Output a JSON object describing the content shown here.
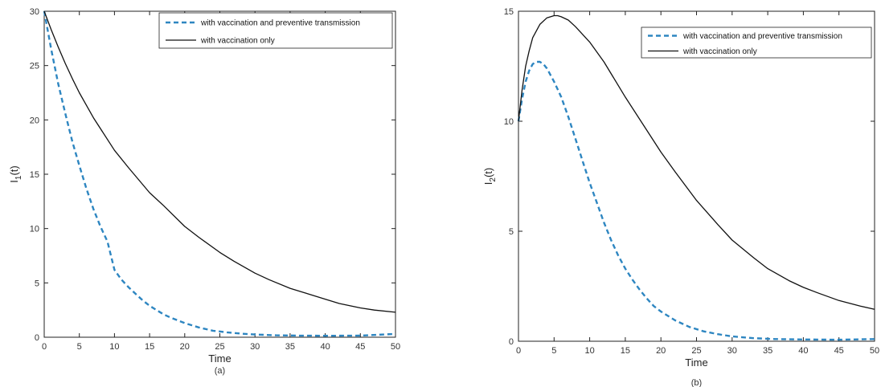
{
  "chart_data": [
    {
      "type": "line",
      "caption": "(a)",
      "xlabel": "Time",
      "ylabel_main": "I",
      "ylabel_sub": "1",
      "ylabel_tail": "(t)",
      "xlim": [
        0,
        50
      ],
      "ylim": [
        0,
        30
      ],
      "xticks": [
        0,
        5,
        10,
        15,
        20,
        25,
        30,
        35,
        40,
        45,
        50
      ],
      "yticks": [
        0,
        5,
        10,
        15,
        20,
        25,
        30
      ],
      "grid": false,
      "legend_position": "top-right",
      "series": [
        {
          "name": "with  vaccination and preventive transmission",
          "style": "dashed",
          "color": "#2e86c1",
          "x": [
            0,
            1,
            2,
            3,
            4,
            5,
            6,
            7,
            8,
            9,
            10,
            11,
            12,
            13,
            14,
            15,
            16,
            17,
            18,
            20,
            22,
            24,
            26,
            28,
            30,
            33,
            36,
            40,
            45,
            50
          ],
          "y": [
            30,
            26.5,
            23.3,
            20.6,
            18.0,
            15.8,
            13.7,
            11.8,
            10.2,
            8.8,
            6.2,
            5.3,
            4.6,
            4.0,
            3.4,
            2.9,
            2.5,
            2.1,
            1.8,
            1.3,
            0.9,
            0.6,
            0.45,
            0.33,
            0.25,
            0.18,
            0.15,
            0.13,
            0.15,
            0.3
          ]
        },
        {
          "name": "with vaccination only",
          "style": "solid",
          "color": "#111111",
          "x": [
            0,
            1,
            2,
            3,
            4,
            5,
            7,
            10,
            12,
            15,
            17,
            20,
            22,
            25,
            27,
            30,
            32,
            35,
            37,
            40,
            42,
            45,
            47,
            50
          ],
          "y": [
            30,
            28.3,
            26.7,
            25.2,
            23.8,
            22.5,
            20.2,
            17.2,
            15.6,
            13.3,
            12.1,
            10.2,
            9.2,
            7.8,
            7.0,
            5.9,
            5.3,
            4.5,
            4.1,
            3.5,
            3.1,
            2.7,
            2.5,
            2.3
          ]
        }
      ]
    },
    {
      "type": "line",
      "caption": "(b)",
      "xlabel": "Time",
      "ylabel_main": "I",
      "ylabel_sub": "2",
      "ylabel_tail": "(t)",
      "xlim": [
        0,
        50
      ],
      "ylim": [
        0,
        15
      ],
      "xticks": [
        0,
        5,
        10,
        15,
        20,
        25,
        30,
        35,
        40,
        45,
        50
      ],
      "yticks": [
        0,
        5,
        10,
        15
      ],
      "grid": false,
      "legend_position": "top-right",
      "series": [
        {
          "name": "with  vaccination and preventive transmission",
          "style": "dashed",
          "color": "#2e86c1",
          "x": [
            0,
            0.5,
            1,
            1.5,
            2,
            2.5,
            3,
            3.5,
            4,
            5,
            6,
            7,
            8,
            9,
            10,
            11,
            12,
            13,
            14,
            15,
            16,
            17,
            18,
            19,
            20,
            22,
            24,
            26,
            28,
            30,
            33,
            36,
            40,
            45,
            50
          ],
          "y": [
            10.0,
            11.0,
            11.8,
            12.3,
            12.6,
            12.7,
            12.7,
            12.6,
            12.4,
            11.8,
            11.1,
            10.2,
            9.2,
            8.2,
            7.2,
            6.3,
            5.4,
            4.6,
            3.9,
            3.3,
            2.8,
            2.35,
            1.95,
            1.6,
            1.35,
            0.95,
            0.65,
            0.45,
            0.32,
            0.22,
            0.14,
            0.1,
            0.08,
            0.07,
            0.1
          ]
        },
        {
          "name": "with vaccination only",
          "style": "solid",
          "color": "#111111",
          "x": [
            0,
            0.5,
            1,
            1.5,
            2,
            3,
            4,
            5,
            5.5,
            6,
            7,
            8,
            10,
            12,
            15,
            18,
            20,
            22,
            25,
            28,
            30,
            33,
            35,
            38,
            40,
            42,
            45,
            48,
            50
          ],
          "y": [
            10.0,
            11.4,
            12.5,
            13.2,
            13.8,
            14.4,
            14.7,
            14.8,
            14.8,
            14.75,
            14.6,
            14.3,
            13.6,
            12.7,
            11.1,
            9.6,
            8.6,
            7.7,
            6.4,
            5.3,
            4.6,
            3.8,
            3.3,
            2.75,
            2.45,
            2.2,
            1.85,
            1.6,
            1.45
          ]
        }
      ]
    }
  ]
}
